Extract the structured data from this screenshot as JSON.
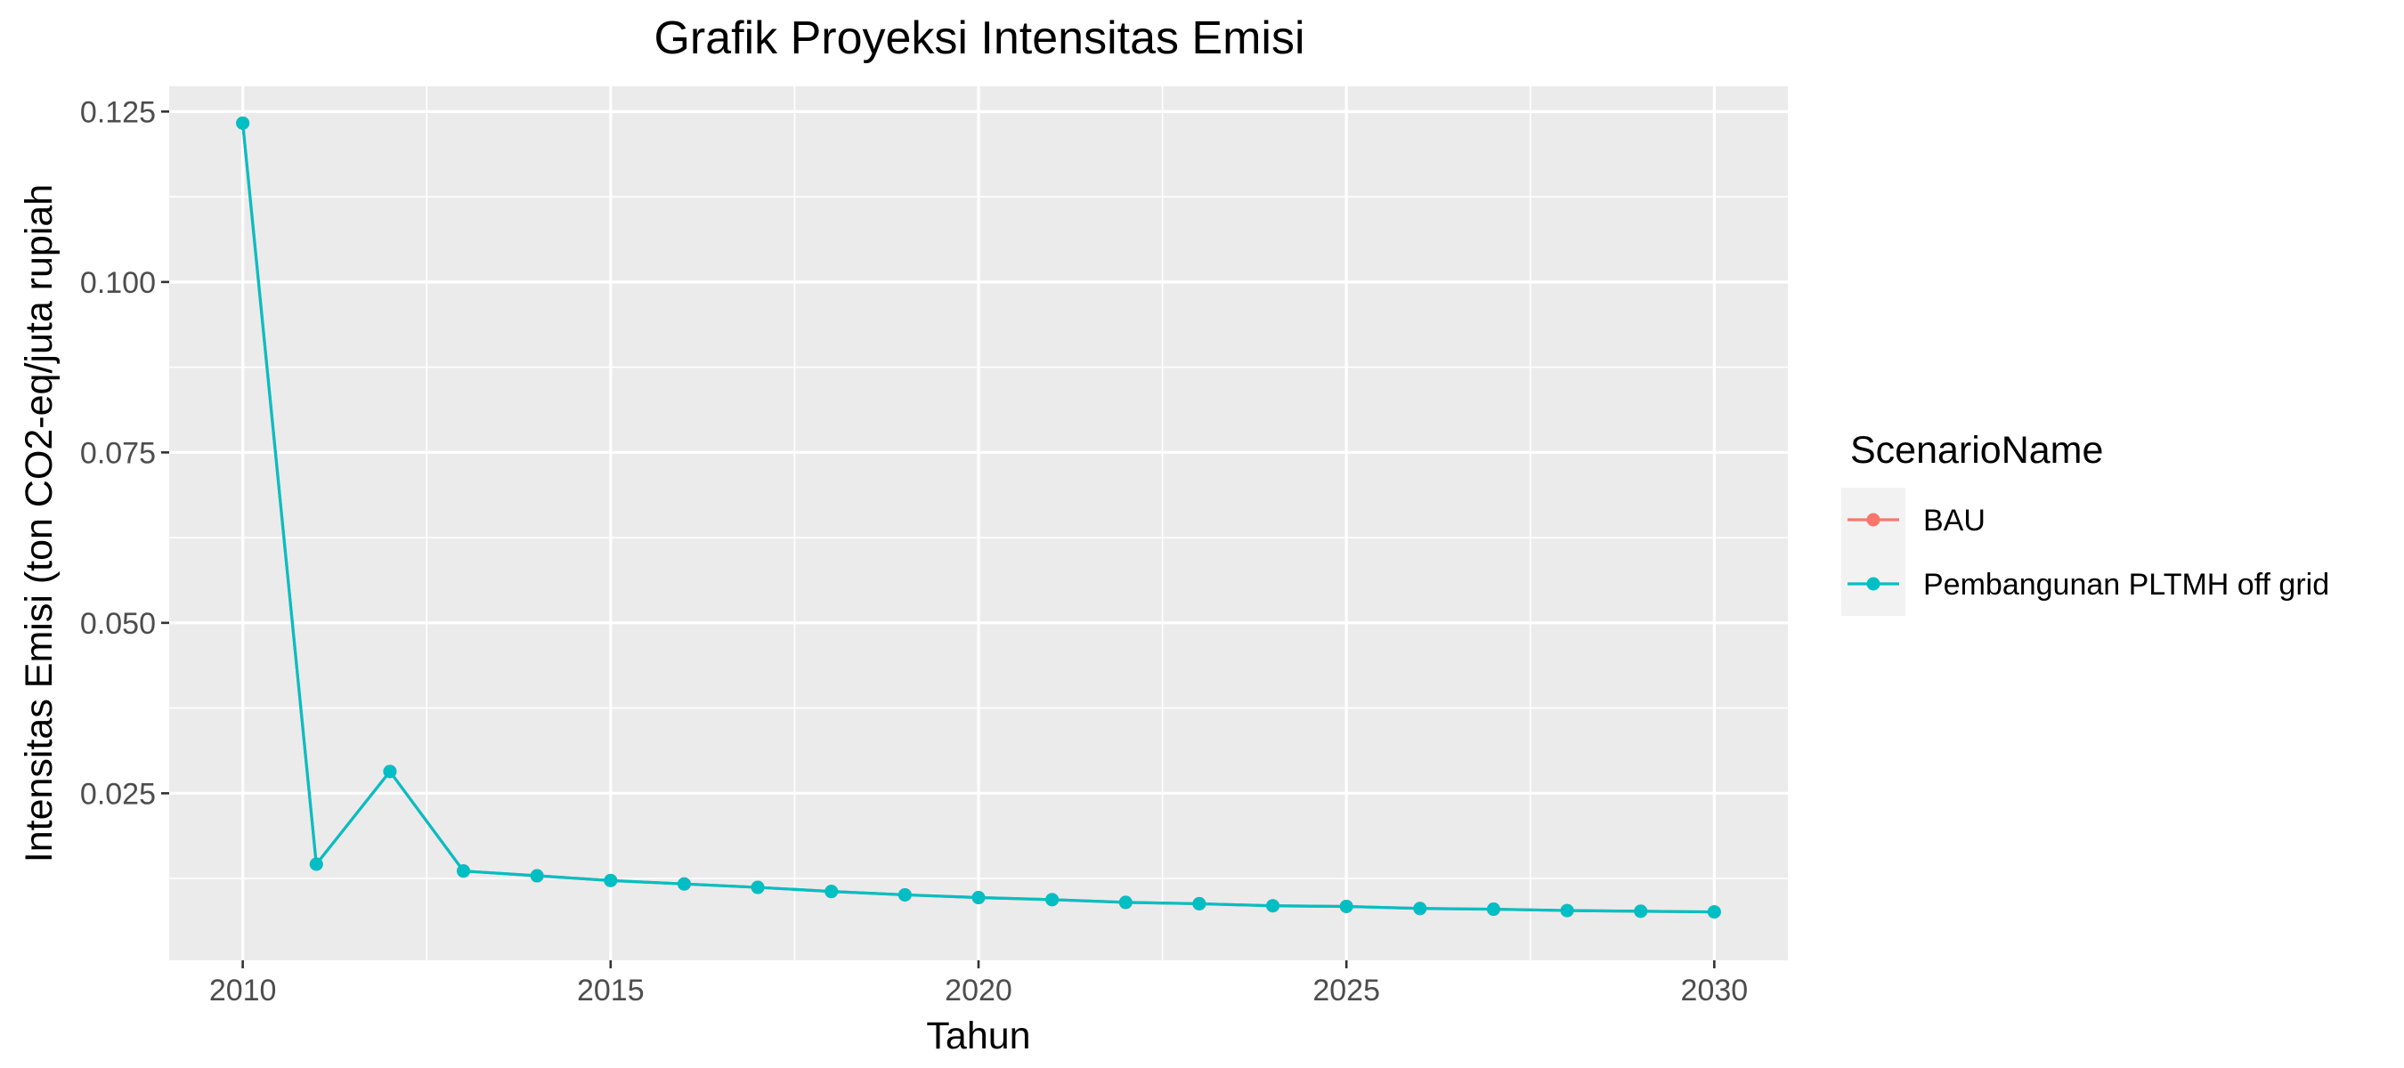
{
  "chart_data": {
    "type": "line",
    "title": "Grafik Proyeksi Intensitas Emisi",
    "xlabel": "Tahun",
    "ylabel": "Intensitas Emisi (ton CO2-eq/juta rupiah",
    "xlim": [
      2009,
      2031
    ],
    "ylim": [
      0.0005,
      0.1287
    ],
    "xticks": [
      2010,
      2015,
      2020,
      2025,
      2030
    ],
    "xtick_labels": [
      "2010",
      "2015",
      "2020",
      "2025",
      "2030"
    ],
    "yticks": [
      0.025,
      0.05,
      0.075,
      0.1,
      0.125
    ],
    "ytick_labels": [
      "0.025",
      "0.050",
      "0.075",
      "0.100",
      "0.125"
    ],
    "grid": true,
    "legend": {
      "title": "ScenarioName",
      "position": "right"
    },
    "x": [
      2010,
      2011,
      2012,
      2013,
      2014,
      2015,
      2016,
      2017,
      2018,
      2019,
      2020,
      2021,
      2022,
      2023,
      2024,
      2025,
      2026,
      2027,
      2028,
      2029,
      2030
    ],
    "series": [
      {
        "name": "BAU",
        "color": "#F8766D",
        "values": [
          0.1233,
          0.0146,
          0.0282,
          0.0136,
          0.0129,
          0.0122,
          0.0117,
          0.0112,
          0.0106,
          0.0101,
          0.0097,
          0.0094,
          0.009,
          0.0088,
          0.0085,
          0.0084,
          0.0081,
          0.008,
          0.0078,
          0.0077,
          0.0076
        ]
      },
      {
        "name": "Pembangunan PLTMH off grid",
        "color": "#00BFC4",
        "values": [
          0.1233,
          0.0146,
          0.0282,
          0.0136,
          0.0129,
          0.0122,
          0.0117,
          0.0112,
          0.0106,
          0.0101,
          0.0097,
          0.0094,
          0.009,
          0.0088,
          0.0085,
          0.0084,
          0.0081,
          0.008,
          0.0078,
          0.0077,
          0.0076
        ]
      }
    ]
  }
}
